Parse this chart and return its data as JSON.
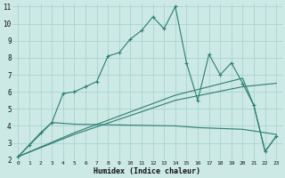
{
  "xlabel": "Humidex (Indice chaleur)",
  "bg_color": "#cce9e5",
  "grid_color": "#aad4cf",
  "line_color": "#2e7d70",
  "xlim": [
    -0.5,
    23.5
  ],
  "ylim": [
    2,
    11.2
  ],
  "xticks": [
    0,
    1,
    2,
    3,
    4,
    5,
    6,
    7,
    8,
    9,
    10,
    11,
    12,
    13,
    14,
    15,
    16,
    17,
    18,
    19,
    20,
    21,
    22,
    23
  ],
  "yticks": [
    2,
    3,
    4,
    5,
    6,
    7,
    8,
    9,
    10,
    11
  ],
  "series1": [
    [
      0,
      2.2
    ],
    [
      1,
      2.9
    ],
    [
      2,
      3.6
    ],
    [
      3,
      4.2
    ],
    [
      4,
      5.9
    ],
    [
      5,
      6.0
    ],
    [
      6,
      6.3
    ],
    [
      7,
      6.6
    ],
    [
      8,
      8.1
    ],
    [
      9,
      8.3
    ],
    [
      10,
      9.1
    ],
    [
      11,
      9.6
    ],
    [
      12,
      10.4
    ],
    [
      13,
      9.7
    ],
    [
      14,
      11.0
    ],
    [
      15,
      7.7
    ],
    [
      16,
      5.5
    ],
    [
      17,
      8.2
    ],
    [
      18,
      7.0
    ],
    [
      19,
      7.7
    ],
    [
      20,
      6.5
    ],
    [
      21,
      5.2
    ],
    [
      22,
      2.5
    ],
    [
      23,
      3.4
    ]
  ],
  "series2": [
    [
      0,
      2.2
    ],
    [
      3,
      4.2
    ],
    [
      5,
      4.1
    ],
    [
      14,
      4.0
    ],
    [
      16,
      3.9
    ],
    [
      20,
      3.8
    ],
    [
      23,
      3.5
    ]
  ],
  "series3": [
    [
      0,
      2.2
    ],
    [
      5,
      3.5
    ],
    [
      14,
      5.5
    ],
    [
      20,
      6.3
    ],
    [
      23,
      6.5
    ]
  ],
  "series4": [
    [
      0,
      2.2
    ],
    [
      5,
      3.6
    ],
    [
      14,
      5.8
    ],
    [
      20,
      6.8
    ],
    [
      21,
      5.2
    ],
    [
      22,
      2.5
    ],
    [
      23,
      3.4
    ]
  ]
}
